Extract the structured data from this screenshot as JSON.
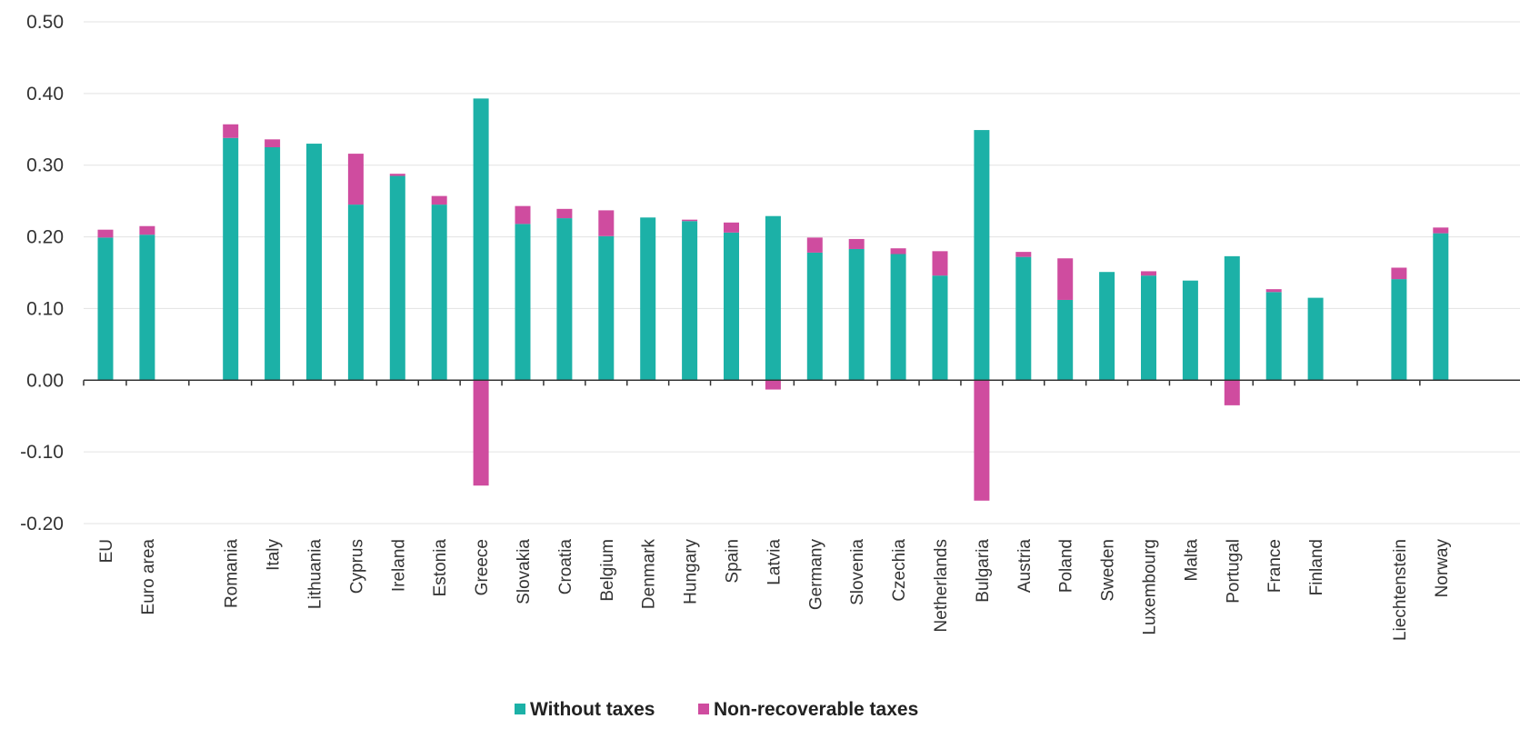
{
  "chart_data": {
    "type": "bar",
    "stacked": true,
    "title": "",
    "xlabel": "",
    "ylabel": "",
    "ylim": [
      -0.2,
      0.5
    ],
    "yticks": [
      "0.50",
      "0.40",
      "0.30",
      "0.20",
      "0.10",
      "0.00",
      "-0.10",
      "-0.20"
    ],
    "ytick_values": [
      0.5,
      0.4,
      0.3,
      0.2,
      0.1,
      0.0,
      -0.1,
      -0.2
    ],
    "grid": true,
    "legend_position": "bottom",
    "category_groups": [
      [
        "EU",
        "Euro area"
      ],
      [
        "Romania",
        "Italy",
        "Lithuania",
        "Cyprus",
        "Ireland",
        "Estonia",
        "Greece",
        "Slovakia",
        "Croatia",
        "Belgium",
        "Denmark",
        "Hungary",
        "Spain",
        "Latvia",
        "Germany",
        "Slovenia",
        "Czechia",
        "Netherlands",
        "Bulgaria",
        "Austria",
        "Poland",
        "Sweden",
        "Luxembourg",
        "Malta",
        "Portugal",
        "France",
        "Finland"
      ],
      [
        "Liechtenstein",
        "Norway"
      ]
    ],
    "categories": [
      "EU",
      "Euro area",
      "Romania",
      "Italy",
      "Lithuania",
      "Cyprus",
      "Ireland",
      "Estonia",
      "Greece",
      "Slovakia",
      "Croatia",
      "Belgium",
      "Denmark",
      "Hungary",
      "Spain",
      "Latvia",
      "Germany",
      "Slovenia",
      "Czechia",
      "Netherlands",
      "Bulgaria",
      "Austria",
      "Poland",
      "Sweden",
      "Luxembourg",
      "Malta",
      "Portugal",
      "France",
      "Finland",
      "Liechtenstein",
      "Norway"
    ],
    "series": [
      {
        "name": "Without taxes",
        "color": "#1cb1a7",
        "values": [
          0.199,
          0.203,
          0.338,
          0.325,
          0.33,
          0.245,
          0.285,
          0.245,
          0.393,
          0.218,
          0.226,
          0.201,
          0.227,
          0.222,
          0.206,
          0.229,
          0.178,
          0.183,
          0.176,
          0.146,
          0.349,
          0.172,
          0.112,
          0.151,
          0.146,
          0.139,
          0.173,
          0.123,
          0.115,
          0.141,
          0.205
        ]
      },
      {
        "name": "Non-recoverable taxes",
        "color": "#cf4c9f",
        "values": [
          0.011,
          0.012,
          0.019,
          0.011,
          0.0,
          0.071,
          0.003,
          0.012,
          -0.147,
          0.025,
          0.013,
          0.036,
          0.0,
          0.002,
          0.014,
          -0.013,
          0.021,
          0.014,
          0.008,
          0.034,
          -0.168,
          0.007,
          0.058,
          0.0,
          0.006,
          0.0,
          -0.035,
          0.004,
          0.0,
          0.016,
          0.008
        ]
      }
    ]
  }
}
